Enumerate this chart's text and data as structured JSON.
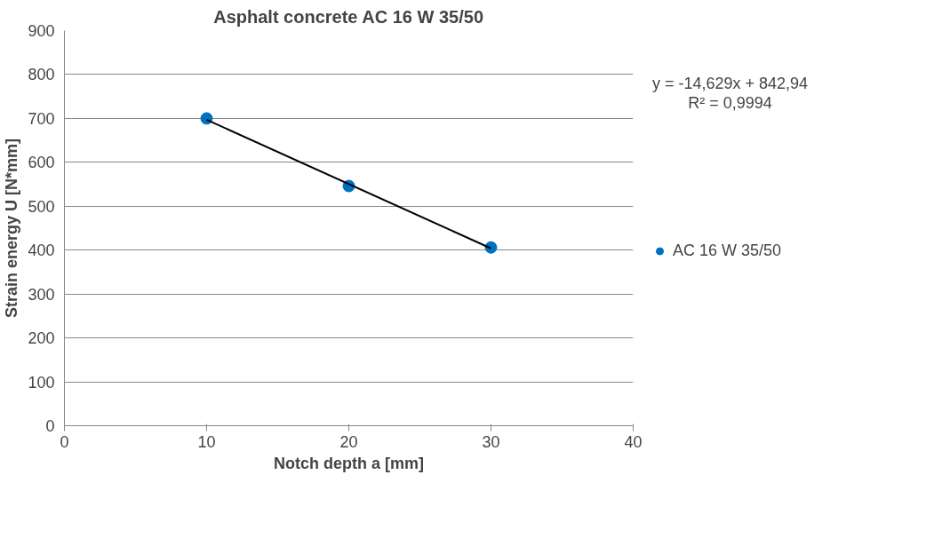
{
  "chart_data": {
    "type": "scatter",
    "title": "Asphalt concrete AC 16 W 35/50",
    "xlabel": "Notch depth a [mm]",
    "ylabel": "Strain energy U [N*mm]",
    "x": [
      10,
      20,
      30
    ],
    "series": [
      {
        "name": "AC 16 W 35/50",
        "color": "#0070c0",
        "values": [
          700,
          546,
          406
        ]
      },
      {
        "type": "line",
        "color": "#000000",
        "marker": "none",
        "x": [
          10,
          30
        ],
        "values": [
          697,
          404
        ]
      }
    ],
    "annotations": [
      "y = -14,629x + 842,94\nR² = 0,9994"
    ],
    "xlim": [
      0,
      40
    ],
    "xticks": [
      0,
      10,
      20,
      30,
      40
    ],
    "ylim": [
      0,
      900
    ],
    "yticks": [
      0,
      100,
      200,
      300,
      400,
      500,
      600,
      700,
      800,
      900
    ],
    "grid": "y",
    "legend": "right",
    "marker": "circle"
  }
}
